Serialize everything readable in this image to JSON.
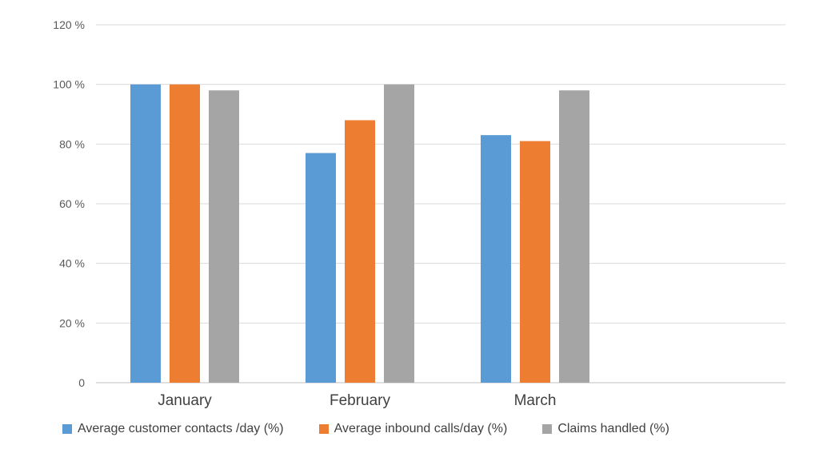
{
  "chart_data": {
    "type": "bar",
    "title": "",
    "xlabel": "",
    "ylabel": "",
    "ylim": [
      0,
      120
    ],
    "yticks": [
      0,
      20,
      40,
      60,
      80,
      100,
      120
    ],
    "ytick_labels": [
      "0",
      "20 %",
      "40 %",
      "60 %",
      "80 %",
      "100 %",
      "120 %"
    ],
    "grid": true,
    "legend_position": "bottom",
    "categories": [
      "January",
      "February",
      "March"
    ],
    "series": [
      {
        "name": "Average customer contacts /day (%)",
        "color": "#5b9bd5",
        "values": [
          100,
          77,
          83
        ]
      },
      {
        "name": "Average inbound calls/day (%)",
        "color": "#ed7d31",
        "values": [
          100,
          88,
          81
        ]
      },
      {
        "name": "Claims handled (%)",
        "color": "#a5a5a5",
        "values": [
          98,
          100,
          98
        ]
      }
    ]
  }
}
